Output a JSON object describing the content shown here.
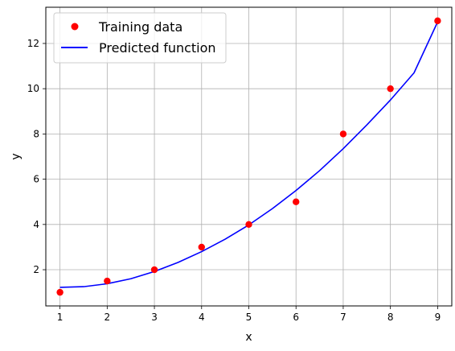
{
  "chart_data": {
    "type": "line",
    "xlabel": "x",
    "ylabel": "y",
    "xlim": [
      0.7,
      9.3
    ],
    "ylim": [
      0.4,
      13.6
    ],
    "xticks": [
      1,
      2,
      3,
      4,
      5,
      6,
      7,
      8,
      9
    ],
    "yticks": [
      2,
      4,
      6,
      8,
      10,
      12
    ],
    "grid": true,
    "legend_position": "top-left",
    "series": [
      {
        "name": "Training data",
        "kind": "scatter",
        "color": "#ff0000",
        "x": [
          1,
          2,
          3,
          4,
          5,
          6,
          7,
          8,
          9
        ],
        "y": [
          1,
          1.5,
          2,
          3,
          4,
          5,
          8,
          10,
          13
        ]
      },
      {
        "name": "Predicted function",
        "kind": "line",
        "color": "#0000ff",
        "x": [
          1,
          1.5,
          2,
          2.5,
          3,
          3.5,
          4,
          4.5,
          5,
          5.5,
          6,
          6.5,
          7,
          7.5,
          8,
          8.5,
          9
        ],
        "y": [
          1.22,
          1.25,
          1.38,
          1.6,
          1.92,
          2.32,
          2.8,
          3.35,
          3.98,
          4.7,
          5.5,
          6.38,
          7.35,
          8.4,
          9.5,
          10.7,
          12.95
        ]
      }
    ]
  }
}
